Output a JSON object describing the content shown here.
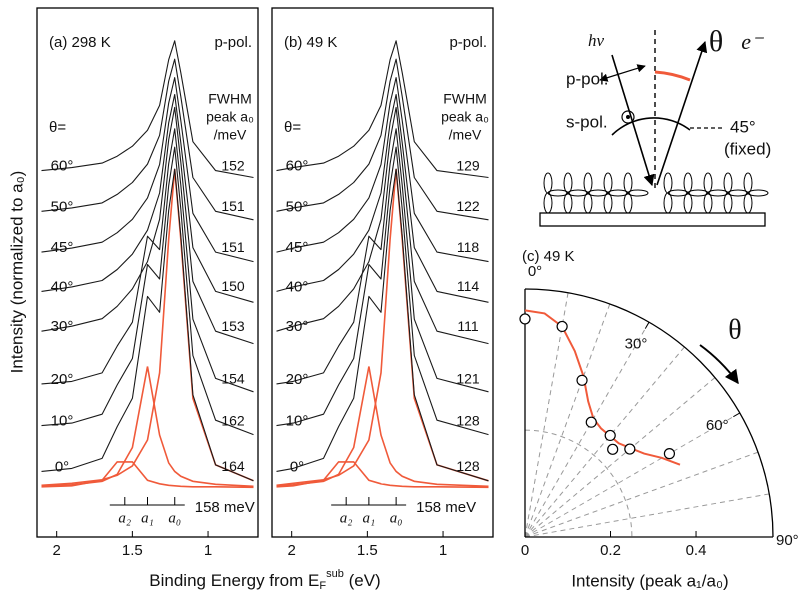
{
  "chart_data": [
    {
      "type": "line",
      "title": "(a) 298 K",
      "polarization": "p-pol.",
      "ylabel": "Intensity (normalized to a₀)",
      "xlabel": {
        "text": "Binding Energy from E",
        "sub": "F",
        "sup": "sub",
        "unit": " (eV)"
      },
      "xlim": [
        2.13,
        0.67
      ],
      "xticks": [
        2,
        1.5,
        1
      ],
      "ylim": [
        -6.4,
        100
      ],
      "x": [
        2.1,
        1.9,
        1.7,
        1.6,
        1.5,
        1.4,
        1.32,
        1.26,
        1.22,
        1.18,
        1.1,
        0.95,
        0.7
      ],
      "theta_label": "θ=",
      "fwhm_header": [
        "FWHM",
        "peak a₀",
        "/meV"
      ],
      "fwhm": [
        164,
        162,
        154,
        153,
        150,
        151,
        151,
        152
      ],
      "series": [
        {
          "name": "0°",
          "color": "#1a1a1a",
          "values": [
            6.8,
            7.4,
            9.4,
            15.8,
            21.5,
            42,
            38.8,
            59.3,
            67.6,
            54.2,
            22.2,
            8.1,
            4.9
          ]
        },
        {
          "name": "10°",
          "color": "#1a1a1a",
          "values": [
            16,
            16.5,
            18.3,
            24.2,
            29.5,
            48.4,
            45.5,
            64.3,
            72,
            59.6,
            30.1,
            17.1,
            14.2
          ]
        },
        {
          "name": "20°",
          "color": "#1a1a1a",
          "values": [
            24.4,
            24.9,
            26.6,
            32,
            36.8,
            54.1,
            51.4,
            68.7,
            75.7,
            64.4,
            37.4,
            25.5,
            22.8
          ]
        },
        {
          "name": "30°",
          "color": "#1a1a1a",
          "values": [
            35,
            36,
            37.5,
            40,
            43.5,
            49,
            57.5,
            73.5,
            80,
            69,
            45,
            35,
            32.5
          ]
        },
        {
          "name": "40°",
          "color": "#1a1a1a",
          "values": [
            43,
            43.9,
            45.2,
            47.4,
            50.5,
            55.3,
            62.8,
            76.9,
            82.6,
            72.9,
            51.8,
            43,
            40.8
          ]
        },
        {
          "name": "45°",
          "color": "#1a1a1a",
          "values": [
            50.9,
            51.7,
            52.9,
            54.8,
            57.5,
            61.8,
            68.5,
            80.9,
            86,
            77.4,
            58.7,
            50.9,
            49
          ]
        },
        {
          "name": "50°",
          "color": "#1a1a1a",
          "values": [
            59.1,
            59.8,
            60.8,
            62.5,
            64.9,
            68.6,
            74.4,
            85.3,
            89.7,
            82.2,
            65.9,
            59.1,
            57.4
          ]
        },
        {
          "name": "60°",
          "color": "#1a1a1a",
          "values": [
            67.3,
            67.9,
            68.8,
            70.2,
            72.2,
            75.4,
            80.4,
            89.6,
            93.4,
            87,
            73.1,
            67.3,
            65.9
          ]
        }
      ],
      "components": [
        {
          "name": "a₂",
          "color": "#f05a3a",
          "values": [
            3.7,
            3.9,
            5,
            8.7,
            8.7,
            5,
            4.3,
            4,
            3.9,
            3.8,
            3.7,
            3.7,
            3.6
          ]
        },
        {
          "name": "a₁",
          "color": "#f05a3a",
          "values": [
            3.8,
            4.1,
            4.8,
            6.2,
            11.6,
            27.9,
            14.1,
            8.5,
            6.8,
            5.8,
            4.8,
            4.2,
            3.8
          ]
        },
        {
          "name": "a₀",
          "color": "#f05a3a",
          "values": [
            4,
            4.4,
            5.1,
            6,
            7.9,
            13.1,
            26.6,
            53.5,
            67.6,
            53.5,
            21.5,
            8.1,
            4.9
          ]
        }
      ],
      "peak_positions": [
        1.55,
        1.4,
        1.22
      ],
      "spacing_label": "158 meV"
    },
    {
      "type": "line",
      "title": "(b) 49 K",
      "polarization": "p-pol.",
      "xlim": [
        2.13,
        0.67
      ],
      "xticks": [
        2,
        1.5,
        1
      ],
      "ylim": [
        -6.4,
        100
      ],
      "x": [
        2.1,
        1.99,
        1.79,
        1.69,
        1.59,
        1.49,
        1.41,
        1.35,
        1.31,
        1.27,
        1.19,
        1.04,
        0.7
      ],
      "theta_label": "θ=",
      "fwhm_header": [
        "FWHM",
        "peak a₀",
        "/meV"
      ],
      "fwhm": [
        128,
        128,
        121,
        111,
        114,
        118,
        122,
        129
      ],
      "series": [
        {
          "name": "0°",
          "color": "#1a1a1a",
          "values": [
            6.8,
            7.4,
            9.4,
            15.8,
            21.5,
            42,
            38.8,
            59.3,
            67.6,
            54.2,
            22.2,
            8.1,
            4.9
          ]
        },
        {
          "name": "10°",
          "color": "#1a1a1a",
          "values": [
            16,
            16.5,
            18.3,
            24.2,
            29.5,
            48.4,
            45.5,
            64.3,
            72,
            59.6,
            30.1,
            17.1,
            14.2
          ]
        },
        {
          "name": "20°",
          "color": "#1a1a1a",
          "values": [
            24.4,
            24.9,
            26.6,
            32,
            36.8,
            54.1,
            51.4,
            68.7,
            75.7,
            64.4,
            37.4,
            25.5,
            22.8
          ]
        },
        {
          "name": "30°",
          "color": "#1a1a1a",
          "values": [
            35,
            36,
            37.5,
            40,
            43.5,
            49,
            57.5,
            73.5,
            80,
            69,
            45,
            35,
            32.5
          ]
        },
        {
          "name": "40°",
          "color": "#1a1a1a",
          "values": [
            43,
            43.9,
            45.2,
            47.4,
            50.5,
            55.3,
            62.8,
            76.9,
            82.6,
            72.9,
            51.8,
            43,
            40.8
          ]
        },
        {
          "name": "45°",
          "color": "#1a1a1a",
          "values": [
            50.9,
            51.7,
            52.9,
            54.8,
            57.5,
            61.8,
            68.5,
            80.9,
            86,
            77.4,
            58.7,
            50.9,
            49
          ]
        },
        {
          "name": "50°",
          "color": "#1a1a1a",
          "values": [
            59.1,
            59.8,
            60.8,
            62.5,
            64.9,
            68.6,
            74.4,
            85.3,
            89.7,
            82.2,
            65.9,
            59.1,
            57.4
          ]
        },
        {
          "name": "60°",
          "color": "#1a1a1a",
          "values": [
            67.3,
            67.9,
            68.8,
            70.2,
            72.2,
            75.4,
            80.4,
            89.6,
            93.4,
            87,
            73.1,
            67.3,
            65.9
          ]
        }
      ],
      "components": [
        {
          "name": "a₂",
          "color": "#f05a3a",
          "values": [
            3.7,
            3.9,
            5,
            8.7,
            8.7,
            5,
            4.3,
            4,
            3.9,
            3.8,
            3.7,
            3.7,
            3.6
          ]
        },
        {
          "name": "a₁",
          "color": "#f05a3a",
          "values": [
            3.8,
            4.1,
            4.8,
            6.2,
            11.6,
            27.9,
            14.1,
            8.5,
            6.8,
            5.8,
            4.8,
            4.2,
            3.8
          ]
        },
        {
          "name": "a₀",
          "color": "#f05a3a",
          "values": [
            4,
            4.4,
            5.1,
            6,
            7.9,
            13.1,
            26.6,
            53.5,
            67.6,
            53.5,
            21.5,
            8.1,
            4.9
          ]
        }
      ],
      "peak_positions": [
        1.64,
        1.49,
        1.31
      ],
      "spacing_label": "158 meV"
    },
    {
      "type": "polar",
      "title": "(c) 49 K",
      "xlabel": "Intensity (peak a₁/a₀)",
      "theta": [
        0,
        10,
        20,
        30,
        40,
        45,
        50,
        60
      ],
      "values": [
        0.51,
        0.5,
        0.39,
        0.31,
        0.31,
        0.29,
        0.32,
        0.39
      ],
      "fit": {
        "color": "#f05a3a",
        "theta": [
          0,
          5,
          10,
          15,
          20,
          25,
          30,
          35,
          45,
          55,
          60,
          65
        ],
        "values": [
          0.53,
          0.525,
          0.5,
          0.45,
          0.4,
          0.35,
          0.32,
          0.31,
          0.31,
          0.34,
          0.37,
          0.4
        ]
      },
      "rlim": [
        0,
        0.58
      ],
      "rticks": [
        0,
        0.2,
        0.4
      ],
      "rgrid": [
        0.25
      ],
      "thetagrid": [
        10,
        20,
        30,
        40,
        50,
        60,
        70,
        80
      ],
      "thetaticks": [
        {
          "value": 0,
          "label": "0°"
        },
        {
          "value": 30,
          "label": "30°"
        },
        {
          "value": 60,
          "label": "60°"
        },
        {
          "value": 90,
          "label": "90°"
        }
      ],
      "direction_label": "θ"
    }
  ],
  "diagram": {
    "hv": "hν",
    "theta": "θ",
    "electron": "e⁻",
    "p_pol": "p-pol.",
    "s_pol": "s-pol.",
    "angle": "45°",
    "fixed": "(fixed)"
  }
}
